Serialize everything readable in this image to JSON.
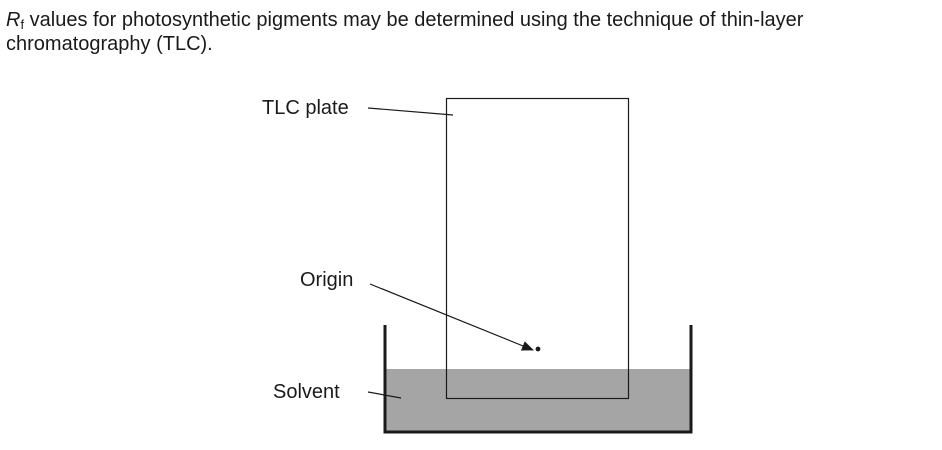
{
  "intro": {
    "r_symbol": "R",
    "r_subscript": "f",
    "text": " values for photosynthetic pigments may be determined using the technique of thin-layer chromatography (TLC)."
  },
  "diagram": {
    "labels": {
      "tlc_plate": "TLC plate",
      "origin": "Origin",
      "solvent": "Solvent"
    },
    "colors": {
      "solvent_fill": "#a6a5a6",
      "line": "#1a1a1a",
      "plate_fill": "#ffffff"
    }
  }
}
